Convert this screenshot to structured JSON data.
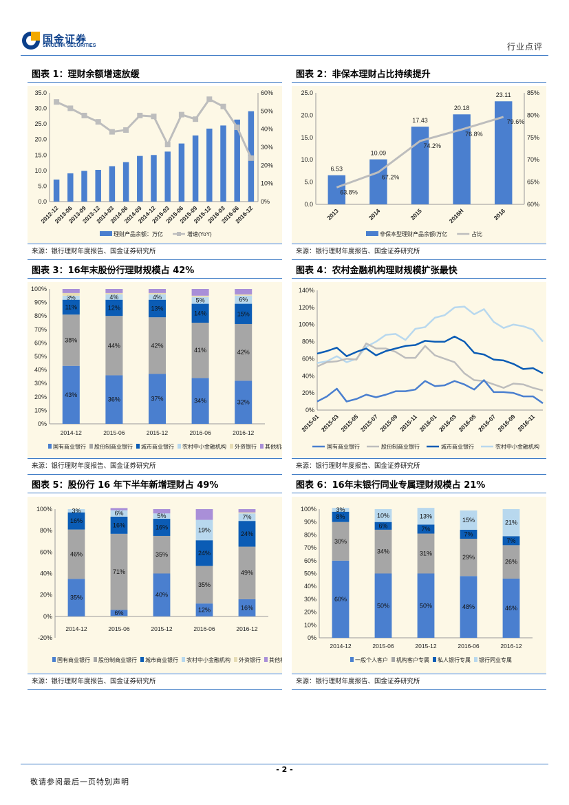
{
  "header": {
    "logo_cn": "国金证券",
    "logo_en": "SINOLINK SECURITIES",
    "tag": "行业点评"
  },
  "footer": {
    "page": "- 2 -",
    "disclaimer": "敬请参阅最后一页特别声明"
  },
  "colors": {
    "accent": "#3a78c4",
    "chart_bg": "#fdf8e6",
    "blue": "#4a7fcf",
    "gray": "#a6a6a6",
    "dark_blue": "#0b5cb5",
    "light_blue": "#b8d8ee",
    "tan": "#e6dcb4",
    "purple": "#a98fd8"
  },
  "chart_data": [
    {
      "title": "图表 1：理财余额增速放缓",
      "source": "来源：银行理财年度报告、国金证券研究所",
      "type": "bar+line",
      "categories": [
        "2012-12",
        "2013-06",
        "2013-09",
        "2013-12",
        "2014-03",
        "2014-06",
        "2014-09",
        "2014-12",
        "2015-03",
        "2015-06",
        "2015-09",
        "2015-12",
        "2016-03",
        "2016-06",
        "2016-12"
      ],
      "bar": {
        "name": "理财产品余额：万亿",
        "values": [
          7.1,
          9.1,
          9.9,
          10.2,
          11.4,
          12.7,
          14.7,
          15.0,
          16.1,
          18.7,
          21.3,
          23.5,
          24.5,
          26.4,
          29.1
        ]
      },
      "line": {
        "name": "增速(YoY)",
        "values": [
          55,
          51.5,
          47.5,
          44,
          38.5,
          39.5,
          47.5,
          47,
          31.5,
          48,
          45.5,
          56.5,
          52.5,
          41,
          24
        ],
        "markers": "square"
      },
      "ylim": [
        0,
        35
      ],
      "ystep": 5,
      "y2lim": [
        0,
        60
      ],
      "y2step": 10,
      "ydecimals": 1,
      "bar_labels": false,
      "line_labels": false
    },
    {
      "title": "图表 2：非保本理财占比持续提升",
      "source": "来源：银行理财年度报告、国金证券研究所",
      "type": "bar+line",
      "categories": [
        "2013",
        "2014",
        "2015",
        "2016H",
        "2016"
      ],
      "bar": {
        "name": "非保本型理财产品余额/万亿",
        "values": [
          6.53,
          10.09,
          17.43,
          20.18,
          23.11
        ]
      },
      "line": {
        "name": "占比",
        "values": [
          63.8,
          67.2,
          74.2,
          76.8,
          79.6
        ],
        "markers": "none"
      },
      "ylim": [
        0,
        25
      ],
      "ystep": 5,
      "y2lim": [
        60,
        85
      ],
      "y2step": 5,
      "ydecimals": 1,
      "bar_labels": true,
      "line_labels": true
    },
    {
      "title": "图表 3：16年末股份行理财规模占 42%",
      "source": "来源：银行理财年度报告、国金证券研究所",
      "type": "stacked-bar",
      "categories": [
        "2014-12",
        "2015-06",
        "2015-12",
        "2016-06",
        "2016-12"
      ],
      "series": [
        {
          "name": "国有商业银行",
          "values": [
            43,
            36,
            37,
            34,
            32
          ],
          "labeled": true
        },
        {
          "name": "股份制商业银行",
          "values": [
            38,
            44,
            42,
            41,
            42
          ],
          "labeled": true
        },
        {
          "name": "城市商业银行",
          "values": [
            11,
            12,
            13,
            14,
            15
          ],
          "labeled": true
        },
        {
          "name": "农村中小金融机构",
          "values": [
            3,
            4,
            4,
            5,
            6
          ],
          "labeled": true
        },
        {
          "name": "外资银行",
          "values": [
            2,
            1,
            1,
            1,
            1
          ],
          "labeled": false
        },
        {
          "name": "其他机构",
          "values": [
            3,
            3,
            3,
            5,
            4
          ],
          "labeled": false
        }
      ],
      "ylim": [
        0,
        100
      ],
      "ystep": 10
    },
    {
      "title": "图表 4：农村金融机构理财规模扩张最快",
      "source": "来源：银行理财年度报告、国金证券研究所",
      "type": "line",
      "x": [
        "2015-01",
        "2015-02",
        "2015-03",
        "2015-04",
        "2015-05",
        "2015-06",
        "2015-07",
        "2015-08",
        "2015-09",
        "2015-10",
        "2015-11",
        "2015-12",
        "2016-01",
        "2016-02",
        "2016-03",
        "2016-04",
        "2016-05",
        "2016-06",
        "2016-07",
        "2016-08",
        "2016-09",
        "2016-10",
        "2016-11",
        "2016-12"
      ],
      "xtick_labels": [
        "2015-01",
        "2015-03",
        "2015-05",
        "2015-07",
        "2015-09",
        "2015-11",
        "2016-01",
        "2016-03",
        "2016-05",
        "2016-07",
        "2016-09",
        "2016-11"
      ],
      "series": [
        {
          "name": "国有商业银行",
          "values": [
            10,
            16,
            25,
            10,
            13,
            18,
            15,
            18,
            22,
            22,
            24,
            34,
            28,
            29,
            34,
            30,
            24,
            35,
            21,
            21,
            20,
            16,
            16,
            8
          ]
        },
        {
          "name": "股份制商业银行",
          "values": [
            51,
            56,
            57,
            60,
            59,
            78,
            72,
            72,
            68,
            61,
            61,
            75,
            64,
            60,
            56,
            43,
            35,
            34,
            30,
            26,
            31,
            30,
            26,
            23
          ]
        },
        {
          "name": "城市商业银行",
          "values": [
            66,
            69,
            73,
            63,
            68,
            72,
            64,
            69,
            72,
            75,
            76,
            81,
            80,
            80,
            86,
            80,
            67,
            65,
            59,
            58,
            54,
            48,
            49,
            43
          ]
        },
        {
          "name": "农村中小金融机构",
          "values": [
            55,
            57,
            63,
            56,
            60,
            74,
            80,
            88,
            89,
            82,
            95,
            97,
            108,
            111,
            120,
            121,
            112,
            118,
            103,
            96,
            100,
            98,
            94,
            80
          ]
        }
      ],
      "ylim": [
        0,
        140
      ],
      "ystep": 20
    },
    {
      "title": "图表 5：股份行 16 年下半年新增理财占 49%",
      "source": "来源：银行理财年度报告、国金证券研究所",
      "type": "stacked-bar",
      "categories": [
        "2014-12",
        "2015-06",
        "2015-12",
        "2016-06",
        "2016-12"
      ],
      "series": [
        {
          "name": "国有商业银行",
          "values": [
            35,
            6,
            40,
            12,
            16
          ],
          "labeled": true
        },
        {
          "name": "股份制商业银行",
          "values": [
            46,
            71,
            35,
            35,
            49
          ],
          "labeled": true
        },
        {
          "name": "城市商业银行",
          "values": [
            16,
            16,
            16,
            24,
            24
          ],
          "labeled": true
        },
        {
          "name": "农村中小金融机构",
          "values": [
            3,
            6,
            5,
            19,
            7
          ],
          "labeled": true
        },
        {
          "name": "外资银行",
          "values": [
            0,
            -1,
            0,
            0,
            1
          ],
          "labeled": false
        },
        {
          "name": "其他机构",
          "values": [
            0,
            2,
            4,
            10,
            3
          ],
          "labeled": false
        }
      ],
      "ylim": [
        -20,
        100
      ],
      "ystep": 20
    },
    {
      "title": "图表 6：16年末银行同业专属理财规模占 21%",
      "source": "来源：银行理财年度报告、国金证券研究所",
      "type": "stacked-bar",
      "categories": [
        "2014-12",
        "2015-06",
        "2015-12",
        "2016-06",
        "2016-12"
      ],
      "series": [
        {
          "name": "一般个人客户",
          "values": [
            60,
            50,
            50,
            48,
            46
          ],
          "labeled": true
        },
        {
          "name": "机构客户专属",
          "values": [
            30,
            34,
            31,
            29,
            26
          ],
          "labeled": true
        },
        {
          "name": "私人银行专属",
          "values": [
            8,
            6,
            7,
            7,
            7
          ],
          "labeled": true
        },
        {
          "name": "银行同业专属",
          "values": [
            3,
            10,
            13,
            15,
            21
          ],
          "labeled": true
        }
      ],
      "ylim": [
        0,
        100
      ],
      "ystep": 10
    }
  ]
}
